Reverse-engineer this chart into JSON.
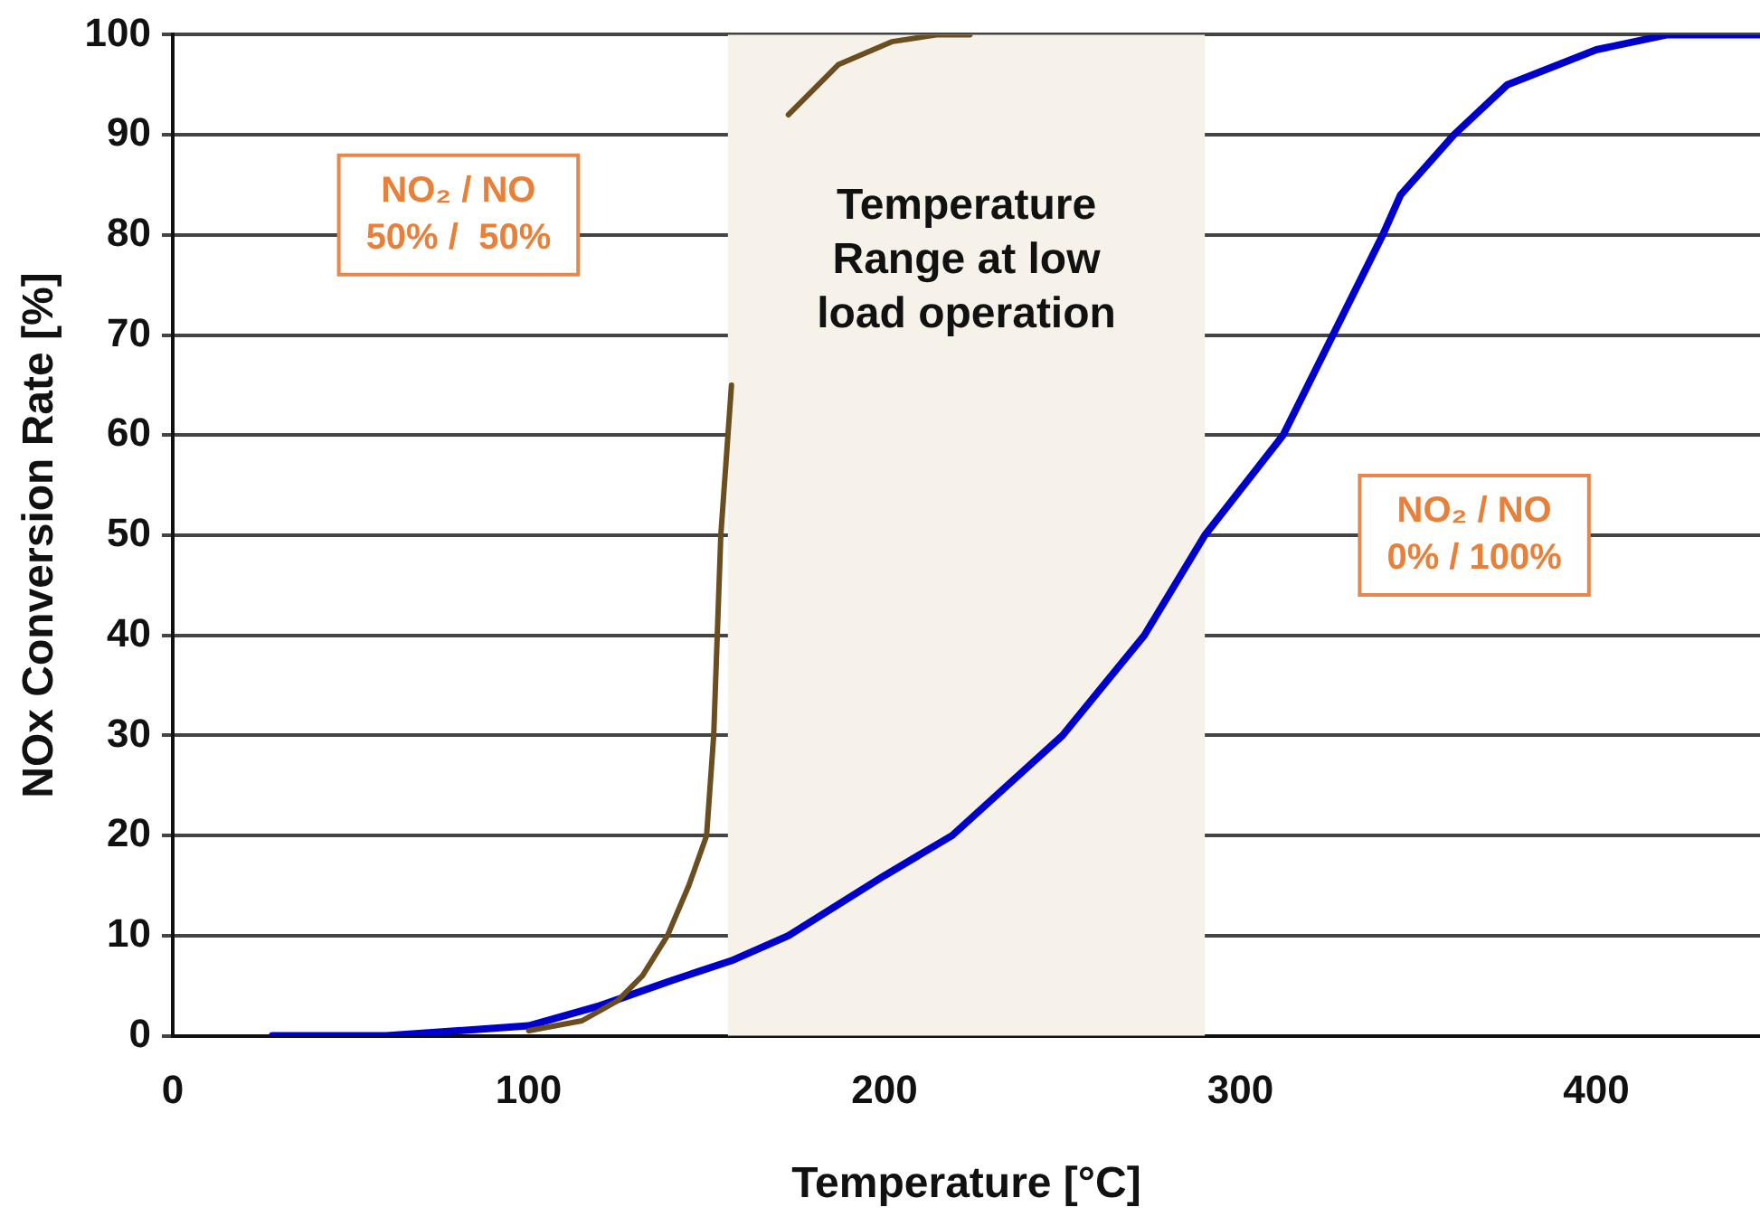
{
  "chart_data": {
    "type": "line",
    "xlabel": "Temperature [°C]",
    "ylabel": "NOx Conversion Rate [%]",
    "xlim": [
      0,
      446
    ],
    "xticks": [
      0,
      100,
      200,
      300,
      400
    ],
    "ylim": [
      0,
      100
    ],
    "yticks": [
      0,
      10,
      20,
      30,
      40,
      50,
      60,
      70,
      80,
      90,
      100
    ],
    "grid": "y",
    "legend": false,
    "annotations": [
      "NO₂ / NO 50% /  50%",
      "NO₂ / NO 0% / 100%"
    ],
    "marker": "none",
    "line_style": "solid",
    "bands": [
      {
        "axis": "x",
        "from": 156,
        "to": 290,
        "label": "Temperature Range at low load operation",
        "color": "#f6f2ea"
      }
    ],
    "series": [
      {
        "color": "#6b4e1f",
        "x": [
          100,
          115,
          125,
          132,
          139,
          145,
          150,
          152,
          154,
          156,
          157,
          165,
          173,
          187,
          202,
          215,
          224
        ],
        "values": [
          0.5,
          1.5,
          3.5,
          6,
          10,
          15,
          20,
          30,
          50,
          60,
          65,
          null,
          92,
          97,
          99.3,
          100,
          100
        ]
      },
      {
        "color": "#0000cc",
        "x": [
          28,
          60,
          100,
          120,
          140,
          157,
          173,
          200,
          219,
          250,
          273,
          290,
          312,
          326,
          340,
          345,
          360,
          375,
          400,
          420,
          446
        ],
        "values": [
          0,
          0,
          1,
          3,
          5.5,
          7.5,
          10,
          16,
          20,
          30,
          40,
          50,
          60,
          70,
          80,
          84,
          90,
          95,
          98.5,
          100,
          100
        ]
      }
    ]
  }
}
